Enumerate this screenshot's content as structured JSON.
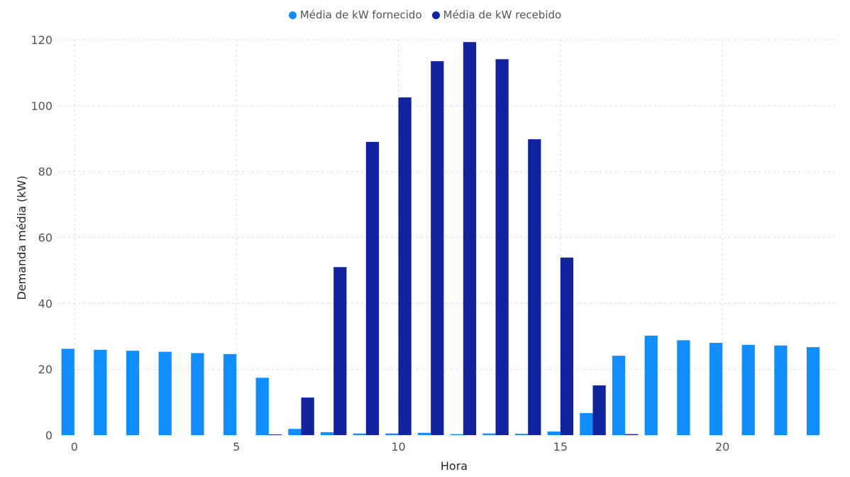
{
  "chart_data": {
    "type": "bar",
    "title": "",
    "xlabel": "Hora",
    "ylabel": "Demanda média (kW)",
    "xlim": [
      -0.5,
      23.5
    ],
    "ylim": [
      0,
      120
    ],
    "x_ticks": [
      0,
      5,
      10,
      15,
      20
    ],
    "y_ticks": [
      0,
      20,
      40,
      60,
      80,
      100,
      120
    ],
    "grid": "dashed",
    "legend_position": "top-center",
    "categories": [
      0,
      1,
      2,
      3,
      4,
      5,
      6,
      7,
      8,
      9,
      10,
      11,
      12,
      13,
      14,
      15,
      16,
      17,
      18,
      19,
      20,
      21,
      22,
      23
    ],
    "series": [
      {
        "name": "Média de kW fornecido",
        "color": "#118dff",
        "values": [
          26.2,
          25.9,
          25.6,
          25.3,
          24.9,
          24.6,
          17.4,
          1.9,
          0.9,
          0.5,
          0.5,
          0.7,
          0.3,
          0.5,
          0.4,
          1.1,
          6.7,
          24.1,
          30.2,
          28.8,
          28.0,
          27.4,
          27.2,
          26.7
        ]
      },
      {
        "name": "Média de kW recebido",
        "color": "#12239e",
        "values": [
          0,
          0,
          0,
          0,
          0,
          0,
          0.2,
          11.4,
          51.0,
          89.0,
          102.5,
          113.5,
          119.3,
          114.1,
          89.8,
          53.9,
          15.1,
          0.3,
          0,
          0,
          0,
          0,
          0,
          0
        ]
      }
    ]
  }
}
